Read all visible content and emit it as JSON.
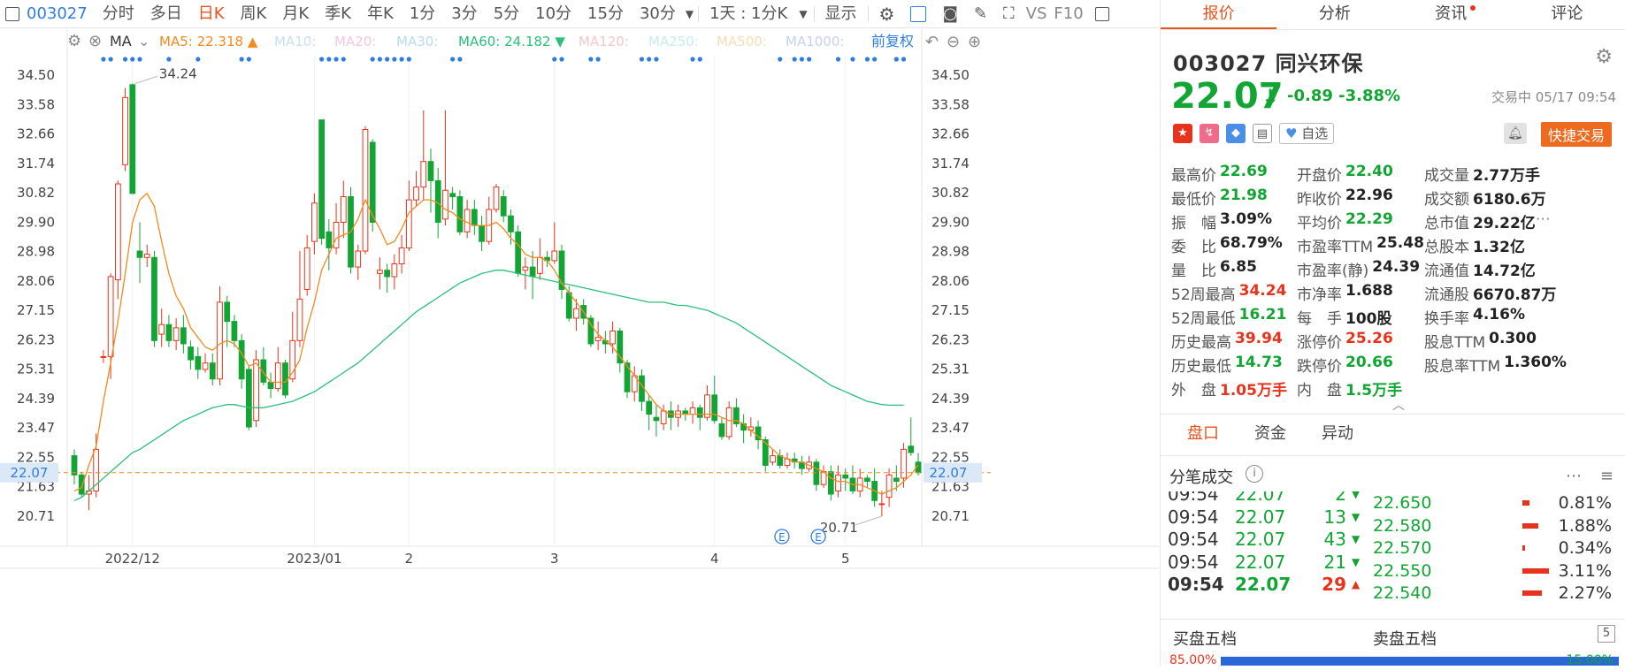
{
  "toolbar": {
    "code": "003027",
    "periods": [
      "分时",
      "多日",
      "日K",
      "周K",
      "月K",
      "季K",
      "年K",
      "1分",
      "3分",
      "5分",
      "10分",
      "15分",
      "30分"
    ],
    "active_period": "日K",
    "range": "1天 : 1分K",
    "display": "显示",
    "vs": "VS",
    "f10": "F10"
  },
  "legend": {
    "ma_type": "MA",
    "ma5_label": "MA5:",
    "ma5_value": "22.318",
    "ma10": "MA10:",
    "ma20": "MA20:",
    "ma30": "MA30:",
    "ma60_label": "MA60:",
    "ma60_value": "24.182",
    "ma120": "MA120:",
    "ma250": "MA250:",
    "ma500": "MA500:",
    "ma1000": "MA1000:",
    "adjust": "前复权"
  },
  "colors": {
    "up": "#e8331c",
    "down": "#12a534",
    "ma5": "#f28a1e",
    "ma60": "#2bbf7a",
    "accent": "#e8531c",
    "blue": "#2f7de1"
  },
  "chart_data": {
    "type": "candlestick",
    "y_ticks": [
      34.5,
      33.58,
      32.66,
      31.74,
      30.82,
      29.9,
      28.98,
      28.06,
      27.15,
      26.23,
      25.31,
      24.39,
      23.47,
      22.55,
      21.63,
      20.71
    ],
    "y_labels": [
      "34.50",
      "33.58",
      "32.66",
      "31.74",
      "30.82",
      "29.90",
      "28.98",
      "28.06",
      "27.15",
      "26.23",
      "25.31",
      "24.39",
      "23.47",
      "22.55",
      "21.63",
      "20.71"
    ],
    "current_price": 22.07,
    "current_price_label": "22.07",
    "high_marker": "34.24",
    "low_marker": "20.71",
    "x_labels": [
      {
        "label": "2022/12",
        "i": 8
      },
      {
        "label": "2023/01",
        "i": 33
      },
      {
        "label": "2",
        "i": 46
      },
      {
        "label": "3",
        "i": 66
      },
      {
        "label": "4",
        "i": 88
      },
      {
        "label": "5",
        "i": 106
      }
    ],
    "dot_groups": [
      [
        4,
        5
      ],
      [
        7,
        8,
        9
      ],
      [
        13
      ],
      [
        17
      ],
      [
        23,
        24
      ],
      [
        34,
        35,
        36,
        37
      ],
      [
        41,
        42,
        43,
        44,
        45,
        46
      ],
      [
        52,
        53
      ],
      [
        66,
        67
      ],
      [
        71,
        72
      ],
      [
        78,
        79,
        80
      ],
      [
        85,
        86
      ],
      [
        97
      ],
      [
        99,
        100,
        101
      ],
      [
        105
      ],
      [
        107
      ],
      [
        109,
        110
      ],
      [
        113,
        114
      ]
    ],
    "event_markers": [
      "E",
      "E"
    ],
    "candles": [
      [
        22.6,
        22.0,
        22.8,
        21.7
      ],
      [
        22.0,
        21.4,
        22.1,
        21.3
      ],
      [
        21.4,
        21.5,
        22.0,
        20.9
      ],
      [
        21.5,
        22.8,
        23.3,
        21.3
      ],
      [
        25.7,
        25.7,
        25.9,
        25.5
      ],
      [
        25.7,
        28.2,
        28.3,
        25.0
      ],
      [
        28.1,
        31.1,
        31.2,
        27.5
      ],
      [
        31.7,
        33.8,
        34.1,
        31.5
      ],
      [
        34.2,
        30.8,
        34.24,
        30.8
      ],
      [
        29.0,
        28.8,
        29.9,
        28.0
      ],
      [
        28.8,
        28.9,
        29.2,
        28.5
      ],
      [
        28.8,
        26.2,
        29.0,
        26.0
      ],
      [
        26.4,
        26.7,
        27.2,
        26.0
      ],
      [
        26.7,
        26.2,
        27.0,
        26.0
      ],
      [
        26.2,
        26.6,
        26.9,
        25.9
      ],
      [
        26.6,
        26.1,
        27.0,
        25.8
      ],
      [
        26.0,
        25.6,
        26.2,
        25.3
      ],
      [
        25.7,
        25.3,
        26.0,
        25.0
      ],
      [
        25.3,
        25.5,
        25.8,
        25.2
      ],
      [
        25.5,
        25.0,
        25.8,
        24.8
      ],
      [
        25.0,
        27.4,
        27.9,
        24.8
      ],
      [
        27.4,
        26.8,
        27.6,
        26.0
      ],
      [
        26.8,
        26.2,
        27.0,
        26.0
      ],
      [
        26.2,
        25.0,
        26.4,
        24.7
      ],
      [
        25.3,
        23.5,
        25.4,
        23.4
      ],
      [
        23.7,
        25.6,
        25.9,
        23.5
      ],
      [
        25.6,
        24.9,
        26.0,
        24.8
      ],
      [
        24.9,
        24.7,
        25.2,
        24.4
      ],
      [
        24.7,
        25.5,
        26.0,
        24.6
      ],
      [
        25.5,
        24.5,
        25.6,
        24.4
      ],
      [
        25.0,
        26.2,
        27.1,
        24.9
      ],
      [
        26.2,
        27.5,
        29.0,
        26.0
      ],
      [
        27.8,
        29.1,
        29.5,
        27.6
      ],
      [
        29.3,
        30.5,
        30.8,
        28.9
      ],
      [
        33.1,
        29.4,
        33.1,
        29.2
      ],
      [
        29.6,
        29.1,
        30.0,
        28.4
      ],
      [
        29.1,
        29.9,
        30.5,
        28.9
      ],
      [
        29.9,
        30.7,
        31.2,
        29.4
      ],
      [
        30.7,
        28.5,
        31.0,
        28.3
      ],
      [
        28.5,
        29.0,
        29.2,
        28.1
      ],
      [
        29.0,
        32.8,
        32.9,
        28.9
      ],
      [
        32.4,
        29.9,
        32.5,
        29.6
      ],
      [
        28.3,
        28.4,
        28.8,
        27.8
      ],
      [
        28.4,
        28.2,
        28.6,
        27.7
      ],
      [
        28.2,
        28.6,
        28.9,
        27.8
      ],
      [
        28.6,
        29.1,
        29.5,
        28.3
      ],
      [
        29.1,
        30.6,
        31.2,
        29.0
      ],
      [
        30.6,
        31.0,
        31.5,
        30.4
      ],
      [
        31.0,
        31.8,
        33.4,
        30.6
      ],
      [
        31.8,
        31.2,
        32.2,
        30.2
      ],
      [
        31.2,
        29.9,
        31.6,
        29.4
      ],
      [
        30.0,
        30.9,
        33.4,
        29.8
      ],
      [
        30.8,
        30.7,
        31.0,
        30.3
      ],
      [
        30.7,
        29.6,
        30.9,
        29.5
      ],
      [
        29.6,
        30.3,
        30.6,
        29.4
      ],
      [
        30.3,
        29.8,
        30.6,
        29.5
      ],
      [
        29.8,
        29.3,
        30.1,
        29.0
      ],
      [
        29.3,
        30.3,
        30.7,
        29.2
      ],
      [
        30.3,
        31.0,
        31.1,
        30.2
      ],
      [
        30.7,
        30.1,
        30.9,
        29.9
      ],
      [
        30.1,
        29.6,
        30.3,
        29.2
      ],
      [
        29.6,
        28.3,
        29.8,
        28.2
      ],
      [
        28.4,
        28.5,
        28.8,
        27.8
      ],
      [
        28.5,
        28.2,
        29.0,
        27.5
      ],
      [
        28.3,
        28.8,
        29.4,
        28.1
      ],
      [
        28.8,
        28.7,
        29.0,
        28.5
      ],
      [
        28.7,
        29.0,
        29.9,
        28.6
      ],
      [
        29.0,
        27.8,
        29.2,
        27.5
      ],
      [
        27.7,
        26.9,
        27.9,
        26.8
      ],
      [
        26.9,
        27.2,
        27.5,
        26.5
      ],
      [
        27.3,
        26.9,
        27.5,
        26.7
      ],
      [
        26.9,
        26.1,
        27.0,
        26.0
      ],
      [
        26.2,
        26.3,
        26.8,
        25.9
      ],
      [
        26.2,
        26.1,
        26.5,
        25.8
      ],
      [
        26.1,
        26.5,
        26.8,
        25.8
      ],
      [
        26.5,
        25.5,
        26.6,
        25.2
      ],
      [
        25.5,
        24.6,
        25.6,
        24.4
      ],
      [
        24.6,
        25.1,
        25.4,
        24.3
      ],
      [
        25.1,
        24.3,
        25.3,
        24.0
      ],
      [
        24.3,
        23.9,
        24.5,
        23.4
      ],
      [
        23.8,
        23.7,
        24.2,
        23.2
      ],
      [
        23.6,
        24.0,
        24.2,
        23.4
      ],
      [
        24.0,
        23.8,
        24.3,
        23.4
      ],
      [
        23.8,
        24.0,
        24.2,
        23.5
      ],
      [
        24.0,
        23.9,
        24.1,
        23.7
      ],
      [
        23.9,
        24.1,
        24.3,
        23.6
      ],
      [
        24.1,
        23.8,
        24.2,
        23.4
      ],
      [
        23.8,
        24.5,
        24.8,
        23.7
      ],
      [
        24.5,
        23.7,
        25.1,
        23.6
      ],
      [
        23.6,
        23.2,
        23.8,
        23.1
      ],
      [
        23.2,
        24.1,
        24.3,
        23.1
      ],
      [
        24.1,
        23.6,
        24.4,
        23.5
      ],
      [
        23.6,
        23.4,
        23.9,
        23.0
      ],
      [
        23.4,
        23.5,
        23.8,
        23.2
      ],
      [
        23.5,
        23.1,
        23.7,
        22.8
      ],
      [
        23.1,
        22.3,
        23.2,
        22.1
      ],
      [
        22.4,
        22.6,
        22.8,
        22.3
      ],
      [
        22.6,
        22.3,
        22.8,
        22.2
      ],
      [
        22.3,
        22.5,
        22.7,
        22.2
      ],
      [
        22.5,
        22.4,
        22.7,
        22.2
      ],
      [
        22.4,
        22.2,
        22.6,
        22.0
      ],
      [
        22.2,
        22.4,
        22.6,
        22.1
      ],
      [
        22.4,
        21.7,
        22.5,
        21.5
      ],
      [
        21.7,
        22.1,
        22.3,
        21.6
      ],
      [
        22.1,
        21.4,
        22.3,
        21.2
      ],
      [
        21.5,
        22.0,
        22.3,
        21.3
      ],
      [
        22.0,
        21.9,
        22.2,
        21.5
      ],
      [
        21.9,
        21.5,
        22.3,
        21.4
      ],
      [
        21.5,
        21.9,
        22.2,
        21.3
      ],
      [
        21.9,
        21.8,
        22.0,
        21.6
      ],
      [
        21.8,
        21.2,
        22.2,
        21.0
      ],
      [
        21.1,
        21.1,
        21.5,
        20.71
      ],
      [
        21.3,
        22.0,
        22.2,
        21.0
      ],
      [
        21.9,
        21.8,
        22.3,
        21.5
      ],
      [
        21.9,
        22.8,
        23.0,
        21.6
      ],
      [
        22.9,
        22.7,
        23.8,
        22.6
      ],
      [
        22.4,
        22.07,
        22.69,
        21.98
      ]
    ],
    "ma5": [
      21.5,
      21.6,
      22.3,
      22.9,
      24.3,
      25.5,
      26.8,
      28.3,
      29.9,
      30.6,
      30.8,
      30.4,
      29.3,
      28.3,
      27.6,
      27.2,
      26.6,
      26.3,
      26.0,
      25.9,
      26.1,
      26.2,
      26.1,
      25.8,
      25.4,
      25.5,
      25.2,
      24.9,
      24.9,
      24.9,
      25.2,
      25.6,
      26.6,
      27.4,
      28.4,
      28.9,
      29.4,
      29.5,
      29.6,
      30.0,
      30.6,
      30.1,
      29.7,
      29.2,
      29.3,
      29.7,
      30.2,
      30.4,
      30.6,
      30.6,
      30.5,
      30.3,
      30.2,
      30.0,
      29.9,
      29.8,
      29.8,
      29.8,
      29.9,
      29.7,
      29.4,
      29.2,
      28.9,
      28.8,
      28.8,
      28.7,
      28.4,
      28.0,
      27.7,
      27.4,
      27.1,
      26.7,
      26.4,
      26.2,
      26.0,
      25.7,
      25.4,
      25.1,
      24.8,
      24.5,
      24.2,
      24.0,
      23.9,
      23.9,
      23.9,
      23.9,
      23.9,
      23.9,
      23.9,
      23.8,
      23.7,
      23.7,
      23.6,
      23.4,
      23.2,
      23.0,
      22.8,
      22.6,
      22.5,
      22.4,
      22.4,
      22.3,
      22.2,
      22.1,
      21.9,
      21.8,
      21.8,
      21.7,
      21.7,
      21.6,
      21.5,
      21.4,
      21.5,
      21.6,
      21.8,
      22.0,
      22.318
    ],
    "ma60": [
      21.2,
      21.3,
      21.5,
      21.7,
      21.9,
      22.1,
      22.3,
      22.5,
      22.7,
      22.8,
      22.95,
      23.1,
      23.25,
      23.4,
      23.55,
      23.7,
      23.8,
      23.9,
      24.0,
      24.1,
      24.15,
      24.2,
      24.2,
      24.15,
      24.1,
      24.1,
      24.1,
      24.15,
      24.2,
      24.25,
      24.3,
      24.4,
      24.5,
      24.6,
      24.75,
      24.9,
      25.05,
      25.2,
      25.35,
      25.5,
      25.7,
      25.9,
      26.1,
      26.3,
      26.5,
      26.7,
      26.9,
      27.1,
      27.25,
      27.4,
      27.55,
      27.7,
      27.85,
      28.0,
      28.1,
      28.2,
      28.3,
      28.35,
      28.4,
      28.4,
      28.35,
      28.3,
      28.25,
      28.2,
      28.15,
      28.1,
      28.05,
      28.0,
      27.95,
      27.9,
      27.85,
      27.8,
      27.75,
      27.7,
      27.65,
      27.6,
      27.55,
      27.5,
      27.45,
      27.4,
      27.4,
      27.4,
      27.35,
      27.3,
      27.3,
      27.25,
      27.2,
      27.15,
      27.05,
      26.95,
      26.85,
      26.75,
      26.6,
      26.45,
      26.3,
      26.15,
      26.0,
      25.85,
      25.7,
      25.55,
      25.4,
      25.25,
      25.1,
      24.95,
      24.8,
      24.7,
      24.6,
      24.5,
      24.4,
      24.3,
      24.25,
      24.2,
      24.18,
      24.182,
      24.182
    ]
  },
  "quote": {
    "tabs": [
      "报价",
      "分析",
      "资讯",
      "评论"
    ],
    "code": "003027",
    "name": "同兴环保",
    "price": "22.07",
    "change": "-0.89",
    "change_pct": "-3.88%",
    "status": "交易中 05/17 09:54",
    "watch": "自选",
    "quick_trade": "快捷交易",
    "rows": [
      [
        {
          "l": "最高价",
          "v": "22.69",
          "c": "green"
        },
        {
          "l": "开盘价",
          "v": "22.40",
          "c": "green"
        },
        {
          "l": "成交量",
          "v": "2.77万手",
          "c": "dark"
        }
      ],
      [
        {
          "l": "最低价",
          "v": "21.98",
          "c": "green"
        },
        {
          "l": "昨收价",
          "v": "22.96",
          "c": "dark"
        },
        {
          "l": "成交额",
          "v": "6180.6万",
          "c": "dark"
        }
      ],
      [
        {
          "l": "振　幅",
          "v": "3.09%",
          "c": "dark"
        },
        {
          "l": "平均价",
          "v": "22.29",
          "c": "green"
        },
        {
          "l": "总市值",
          "v": "29.22亿",
          "c": "dark"
        }
      ],
      [
        {
          "l": "委　比",
          "v": "68.79%",
          "c": "dark"
        },
        {
          "l": "市盈率TTM",
          "v": "25.48",
          "c": "dark"
        },
        {
          "l": "总股本",
          "v": "1.32亿",
          "c": "dark"
        }
      ],
      [
        {
          "l": "量　比",
          "v": "6.85",
          "c": "dark"
        },
        {
          "l": "市盈率(静)",
          "v": "24.39",
          "c": "dark"
        },
        {
          "l": "流通值",
          "v": "14.72亿",
          "c": "dark"
        }
      ],
      [
        {
          "l": "52周最高",
          "v": "34.24",
          "c": "red"
        },
        {
          "l": "市净率",
          "v": "1.688",
          "c": "dark"
        },
        {
          "l": "流通股",
          "v": "6670.87万",
          "c": "dark"
        }
      ],
      [
        {
          "l": "52周最低",
          "v": "16.21",
          "c": "green"
        },
        {
          "l": "每　手",
          "v": "100股",
          "c": "dark"
        },
        {
          "l": "换手率",
          "v": "4.16%",
          "c": "dark"
        }
      ],
      [
        {
          "l": "历史最高",
          "v": "39.94",
          "c": "red"
        },
        {
          "l": "涨停价",
          "v": "25.26",
          "c": "red"
        },
        {
          "l": "股息TTM",
          "v": "0.300",
          "c": "dark"
        }
      ],
      [
        {
          "l": "历史最低",
          "v": "14.73",
          "c": "green"
        },
        {
          "l": "跌停价",
          "v": "20.66",
          "c": "green"
        },
        {
          "l": "股息率TTM",
          "v": "1.360%",
          "c": "dark"
        }
      ],
      [
        {
          "l": "外　盘",
          "v": "1.05万手",
          "c": "red"
        },
        {
          "l": "内　盘",
          "v": "1.5万手",
          "c": "green"
        },
        {
          "l": "",
          "v": "",
          "c": "dark"
        }
      ]
    ]
  },
  "subtabs": [
    "盘口",
    "资金",
    "异动"
  ],
  "ticks": {
    "title": "分笔成交",
    "rows": [
      {
        "t": "09:54",
        "p": "22.07",
        "v": "2",
        "d": "down"
      },
      {
        "t": "09:54",
        "p": "22.07",
        "v": "13",
        "d": "down"
      },
      {
        "t": "09:54",
        "p": "22.07",
        "v": "43",
        "d": "down"
      },
      {
        "t": "09:54",
        "p": "22.07",
        "v": "21",
        "d": "down"
      },
      {
        "t": "09:54",
        "p": "22.07",
        "v": "29",
        "d": "up"
      }
    ],
    "levels": [
      {
        "p": "22.650",
        "pct": "0.81%",
        "w": 0.26
      },
      {
        "p": "22.580",
        "pct": "1.88%",
        "w": 0.6
      },
      {
        "p": "22.570",
        "pct": "0.34%",
        "w": 0.11
      },
      {
        "p": "22.550",
        "pct": "3.11%",
        "w": 1.0
      },
      {
        "p": "22.540",
        "pct": "2.27%",
        "w": 0.73
      }
    ]
  },
  "five": {
    "buy": "买盘五档",
    "sell": "卖盘五档",
    "buy_pct": "85.00%",
    "sell_pct": "15.00%",
    "num": "5"
  }
}
